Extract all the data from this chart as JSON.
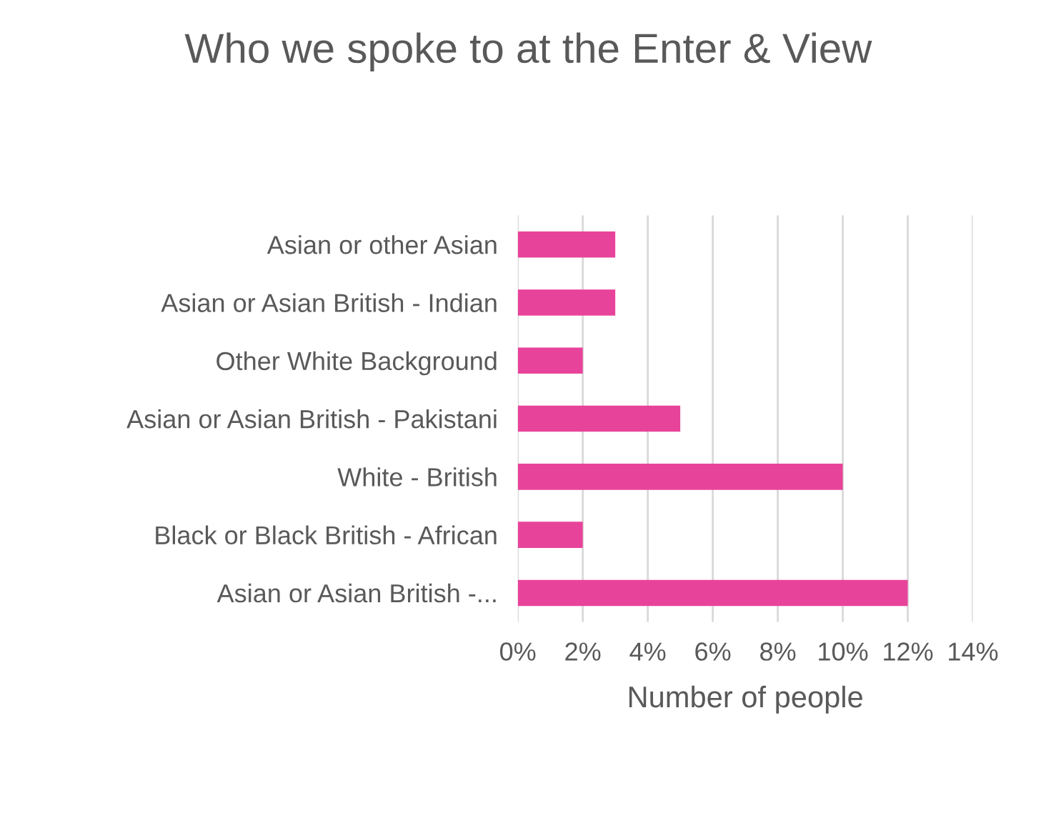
{
  "chart_data": {
    "type": "bar",
    "orientation": "horizontal",
    "title": "Who we spoke to at the Enter & View",
    "xlabel": "Number of people",
    "categories": [
      "Asian or other Asian",
      "Asian or Asian British - Indian",
      "Other White Background",
      "Asian or Asian British - Pakistani",
      "White - British",
      "Black or Black British - African",
      "Asian or Asian British -..."
    ],
    "values": [
      3,
      3,
      2,
      5,
      10,
      2,
      12
    ],
    "color": "#e8439a",
    "xlim": [
      0,
      14
    ],
    "xticks": [
      {
        "value": 0,
        "label": "0%"
      },
      {
        "value": 2,
        "label": "2%"
      },
      {
        "value": 4,
        "label": "4%"
      },
      {
        "value": 6,
        "label": "6%"
      },
      {
        "value": 8,
        "label": "8%"
      },
      {
        "value": 10,
        "label": "10%"
      },
      {
        "value": 12,
        "label": "12%"
      },
      {
        "value": 14,
        "label": "14%"
      }
    ],
    "grid": "x"
  }
}
